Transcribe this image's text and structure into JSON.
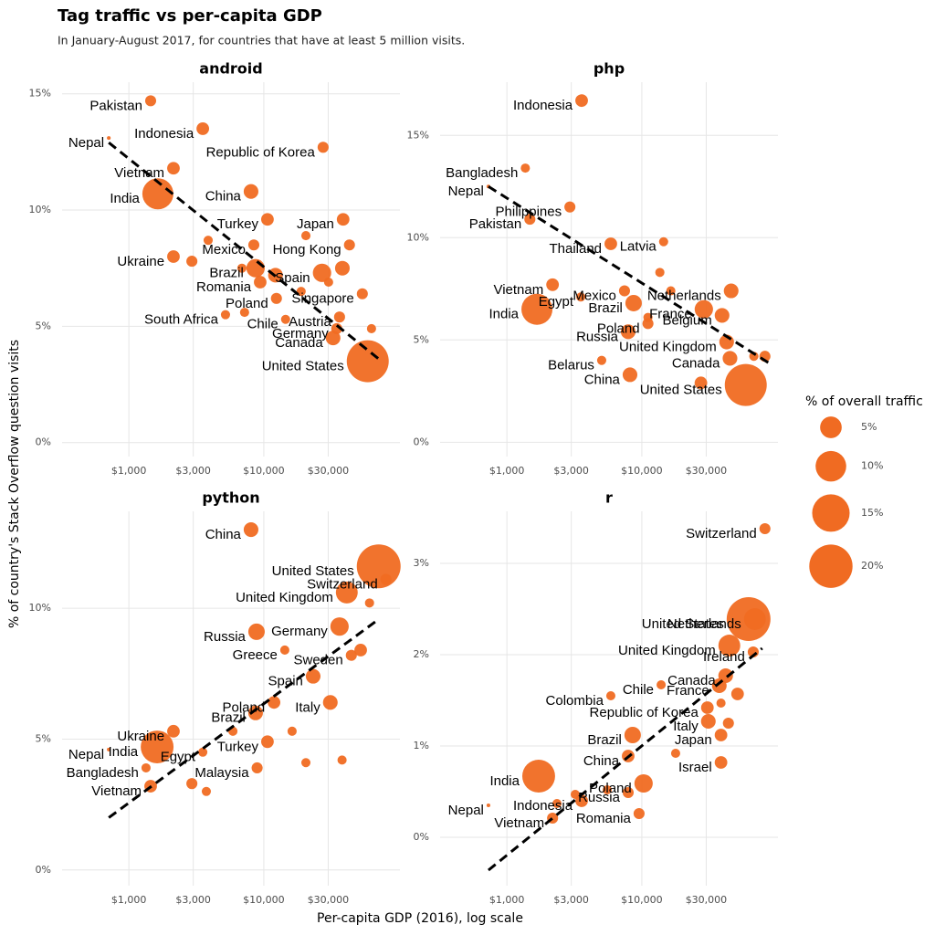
{
  "title": "Tag traffic vs per-capita GDP",
  "subtitle": "In January-August 2017, for countries that have at least 5 million visits.",
  "x_label": "Per-capita GDP (2016), log scale",
  "y_label": "% of country's Stack Overflow question visits",
  "legend": {
    "title": "% of overall traffic",
    "sizes": [
      {
        "value": 5,
        "label": "5%"
      },
      {
        "value": 10,
        "label": "10%"
      },
      {
        "value": 15,
        "label": "15%"
      },
      {
        "value": 20,
        "label": "20%"
      }
    ]
  },
  "chart_data": [
    {
      "type": "scatter",
      "title": "android",
      "color": "#f06b22",
      "xscale": "log",
      "grid": true,
      "xlim": [
        320,
        102000
      ],
      "xticks": [
        {
          "value": 1000,
          "label": "$1,000"
        },
        {
          "value": 3000,
          "label": "$3,000"
        },
        {
          "value": 10000,
          "label": "$10,000"
        },
        {
          "value": 30000,
          "label": "$30,000"
        }
      ],
      "ylim": [
        -0.6,
        15.5
      ],
      "yticks": [
        {
          "value": 0,
          "label": "0%"
        },
        {
          "value": 5,
          "label": "5%"
        },
        {
          "value": 10,
          "label": "10%"
        },
        {
          "value": 15,
          "label": "15%"
        }
      ],
      "labels": [
        "Pakistan",
        "Indonesia",
        "Nepal",
        "Republic of Korea",
        "Vietnam",
        "India",
        "China",
        "Turkey",
        "Japan",
        "Mexico",
        "Hong Kong",
        "Ukraine",
        "Brazil",
        "Spain",
        "Romania",
        "Singapore",
        "Poland",
        "South Africa",
        "Austria",
        "Chile",
        "Germany",
        "Canada",
        "United States",
        null,
        null,
        null,
        null,
        null,
        null,
        null,
        null,
        null,
        null
      ],
      "x": [
        1450,
        3530,
        710,
        27500,
        2140,
        1640,
        8040,
        10640,
        38700,
        8430,
        43100,
        2140,
        8690,
        27000,
        9400,
        53700,
        12400,
        5200,
        36400,
        14500,
        34700,
        32600,
        58900,
        2930,
        3870,
        6880,
        12200,
        20500,
        38200,
        62800,
        30200,
        7200,
        18900
      ],
      "values": [
        14.7,
        13.5,
        13.1,
        12.7,
        11.8,
        10.7,
        10.8,
        9.6,
        9.6,
        8.5,
        8.5,
        8.0,
        7.5,
        7.3,
        6.9,
        6.4,
        6.2,
        5.5,
        5.4,
        5.3,
        4.9,
        4.5,
        3.5,
        7.8,
        8.7,
        7.5,
        7.2,
        8.9,
        7.5,
        4.9,
        6.9,
        5.6,
        6.5
      ],
      "sizes": [
        1.3,
        1.7,
        0.15,
        1.3,
        1.7,
        10.3,
        2.3,
        1.7,
        1.7,
        1.3,
        1.3,
        1.7,
        3.6,
        3.6,
        1.7,
        1.3,
        1.3,
        0.9,
        1.3,
        0.9,
        1.3,
        2.3,
        18.8,
        1.3,
        0.9,
        0.9,
        2.3,
        0.9,
        2.3,
        0.9,
        0.9,
        0.9,
        0.9
      ],
      "trend": {
        "x": [
          710,
          74500
        ],
        "values": [
          12.9,
          3.5
        ]
      }
    },
    {
      "type": "scatter",
      "title": "php",
      "color": "#f06b22",
      "xscale": "log",
      "grid": true,
      "xlim": [
        320,
        102000
      ],
      "xticks": [
        {
          "value": 1000,
          "label": "$1,000"
        },
        {
          "value": 3000,
          "label": "$3,000"
        },
        {
          "value": 10000,
          "label": "$10,000"
        },
        {
          "value": 30000,
          "label": "$30,000"
        }
      ],
      "ylim": [
        -0.7,
        17.6
      ],
      "yticks": [
        {
          "value": 0,
          "label": "0%"
        },
        {
          "value": 5,
          "label": "5%"
        },
        {
          "value": 10,
          "label": "10%"
        },
        {
          "value": 15,
          "label": "15%"
        }
      ],
      "labels": [
        "Indonesia",
        "Bangladesh",
        "Nepal",
        "Philippines",
        "Pakistan",
        "Thailand",
        "Latvia",
        "Vietnam",
        "Egypt",
        "India",
        "Mexico",
        "Netherlands",
        "Brazil",
        "France",
        "Belgium",
        "Poland",
        "Russia",
        "United Kingdom",
        "Canada",
        "Belarus",
        "China",
        "United States",
        null,
        null,
        null,
        null,
        null,
        null
      ],
      "x": [
        3580,
        1370,
        730,
        2930,
        1480,
        5890,
        14500,
        2180,
        3530,
        1670,
        7440,
        45900,
        8690,
        28800,
        39300,
        11100,
        7920,
        42500,
        45000,
        5040,
        8170,
        58900,
        81700,
        11100,
        13600,
        27400,
        16400,
        67600
      ],
      "values": [
        16.7,
        13.4,
        12.5,
        11.5,
        10.9,
        9.7,
        9.8,
        7.7,
        7.1,
        6.5,
        7.4,
        7.4,
        6.8,
        6.5,
        6.2,
        5.8,
        5.4,
        4.9,
        4.1,
        4.0,
        3.3,
        2.8,
        4.2,
        6.1,
        8.3,
        2.9,
        7.4,
        4.2
      ],
      "sizes": [
        1.7,
        0.9,
        0.15,
        1.3,
        1.3,
        1.7,
        0.9,
        1.7,
        0.9,
        10.3,
        1.3,
        2.3,
        2.9,
        3.6,
        2.3,
        1.3,
        2.3,
        2.3,
        2.3,
        0.9,
        2.3,
        18.8,
        1.3,
        0.9,
        0.9,
        1.7,
        0.9,
        0.9
      ],
      "trend": {
        "x": [
          730,
          91000
        ],
        "values": [
          12.5,
          3.8
        ]
      }
    },
    {
      "type": "scatter",
      "title": "python",
      "color": "#f06b22",
      "xscale": "log",
      "grid": true,
      "xlim": [
        320,
        102000
      ],
      "xticks": [
        {
          "value": 1000,
          "label": "$1,000"
        },
        {
          "value": 3000,
          "label": "$3,000"
        },
        {
          "value": 10000,
          "label": "$10,000"
        },
        {
          "value": 30000,
          "label": "$30,000"
        }
      ],
      "ylim": [
        -0.6,
        13.7
      ],
      "yticks": [
        {
          "value": 0,
          "label": "0%"
        },
        {
          "value": 5,
          "label": "5%"
        },
        {
          "value": 10,
          "label": "10%"
        }
      ],
      "labels": [
        "China",
        "United States",
        "Switzerland",
        "United Kingdom",
        "Germany",
        "Russia",
        "Sweden",
        "Greece",
        "Spain",
        "Poland",
        "Italy",
        "Brazil",
        "Ukraine",
        "India",
        "Egypt",
        "Nepal",
        "Turkey",
        "Bangladesh",
        "Malaysia",
        "Vietnam",
        null,
        null,
        null,
        null,
        null,
        null,
        null,
        null
      ],
      "x": [
        8040,
        71000,
        80400,
        41200,
        36400,
        8830,
        44500,
        14300,
        23200,
        11900,
        31100,
        8690,
        2140,
        1620,
        3530,
        710,
        10640,
        1340,
        8920,
        1450,
        2930,
        3750,
        38000,
        20500,
        16200,
        60700,
        52200,
        5900
      ],
      "values": [
        13.0,
        11.6,
        11.1,
        10.6,
        9.3,
        9.1,
        8.2,
        8.4,
        7.4,
        6.4,
        6.4,
        6.0,
        5.3,
        4.7,
        4.5,
        4.6,
        4.9,
        3.9,
        3.9,
        3.2,
        3.3,
        3.0,
        4.2,
        4.1,
        5.3,
        10.2,
        8.4,
        5.3
      ],
      "sizes": [
        2.3,
        20.5,
        1.3,
        5.1,
        3.6,
        2.9,
        1.3,
        0.9,
        2.3,
        1.7,
        2.3,
        2.3,
        1.7,
        11.5,
        0.9,
        0.15,
        1.7,
        0.9,
        1.3,
        1.7,
        1.3,
        0.9,
        0.9,
        0.9,
        0.9,
        0.9,
        1.7,
        0.9
      ],
      "trend": {
        "x": [
          710,
          67800
        ],
        "values": [
          2.0,
          9.5
        ]
      }
    },
    {
      "type": "scatter",
      "title": "r",
      "color": "#f06b22",
      "xscale": "log",
      "grid": true,
      "xlim": [
        320,
        102000
      ],
      "xticks": [
        {
          "value": 1000,
          "label": "$1,000"
        },
        {
          "value": 3000,
          "label": "$3,000"
        },
        {
          "value": 10000,
          "label": "$10,000"
        },
        {
          "value": 30000,
          "label": "$30,000"
        }
      ],
      "ylim": [
        -0.53,
        3.57
      ],
      "yticks": [
        {
          "value": 0,
          "label": "0%"
        },
        {
          "value": 1,
          "label": "1%"
        },
        {
          "value": 2,
          "label": "2%"
        },
        {
          "value": 3,
          "label": "3%"
        }
      ],
      "labels": [
        "Switzerland",
        "Netherlands",
        "United States",
        "United Kingdom",
        "Ireland",
        "Canada",
        "Chile",
        "Colombia",
        "France",
        "Republic of Korea",
        "Italy",
        "Brazil",
        "Japan",
        "China",
        "Israel",
        "India",
        "Poland",
        "Russia",
        "Indonesia",
        "Nepal",
        "Vietnam",
        "Romania",
        null,
        null,
        null,
        null,
        null,
        null,
        null
      ],
      "x": [
        81700,
        68800,
        61800,
        44500,
        66900,
        41800,
        13900,
        5890,
        37500,
        30600,
        31100,
        8550,
        38600,
        7920,
        38600,
        1720,
        10300,
        7920,
        3580,
        730,
        2180,
        9540,
        51200,
        38600,
        17800,
        43800,
        5540,
        2350,
        3210
      ],
      "values": [
        3.38,
        2.39,
        2.39,
        2.1,
        2.03,
        1.77,
        1.67,
        1.55,
        1.66,
        1.42,
        1.27,
        1.12,
        1.12,
        0.89,
        0.82,
        0.67,
        0.59,
        0.49,
        0.4,
        0.35,
        0.21,
        0.26,
        1.57,
        1.47,
        0.92,
        1.25,
        0.52,
        0.37,
        0.47
      ],
      "sizes": [
        1.3,
        5.1,
        20.5,
        5.1,
        1.3,
        2.3,
        0.9,
        0.9,
        2.3,
        1.7,
        2.3,
        2.9,
        1.7,
        1.7,
        1.7,
        11.5,
        3.6,
        1.3,
        1.7,
        0.15,
        1.3,
        1.3,
        1.7,
        0.9,
        0.9,
        1.3,
        0.9,
        0.9,
        0.9
      ],
      "trend": {
        "x": [
          730,
          78000
        ],
        "values": [
          -0.36,
          2.07
        ]
      }
    }
  ]
}
